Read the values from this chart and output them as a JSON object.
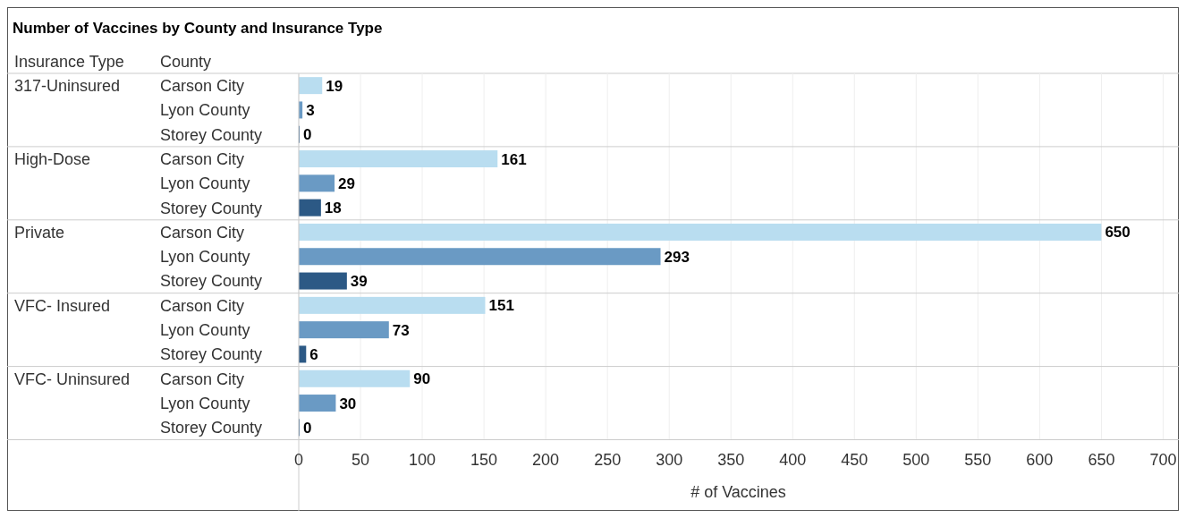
{
  "chart_data": {
    "type": "bar",
    "orientation": "horizontal",
    "title": "Number of Vaccines by County and Insurance Type",
    "xlabel": "# of Vaccines",
    "annotations": [
      "Insurance Type",
      "County",
      "317-Uninsured",
      "High-Dose",
      "Private",
      "VFC- Insured",
      "VFC- Uninsured"
    ],
    "categories": [
      "Carson City",
      "Lyon County",
      "Storey County",
      "Carson City",
      "Lyon County",
      "Storey County",
      "Carson City",
      "Lyon County",
      "Storey County",
      "Carson City",
      "Lyon County",
      "Storey County",
      "Carson City",
      "Lyon County",
      "Storey County"
    ],
    "values": [
      19,
      3,
      0,
      161,
      29,
      18,
      650,
      293,
      39,
      151,
      73,
      6,
      90,
      30,
      0
    ],
    "colors": [
      "#b9ddf0",
      "#6a9ac4",
      "#2c5985",
      "#b9ddf0",
      "#6a9ac4",
      "#2c5985",
      "#b9ddf0",
      "#6a9ac4",
      "#2c5985",
      "#b9ddf0",
      "#6a9ac4",
      "#2c5985",
      "#b9ddf0",
      "#6a9ac4",
      "#2c5985"
    ],
    "xlim": [
      0,
      712
    ],
    "xticks": [
      0,
      50,
      100,
      150,
      200,
      250,
      300,
      350,
      400,
      450,
      500,
      550,
      600,
      650,
      700
    ],
    "grid": "x",
    "data_labels": true
  }
}
